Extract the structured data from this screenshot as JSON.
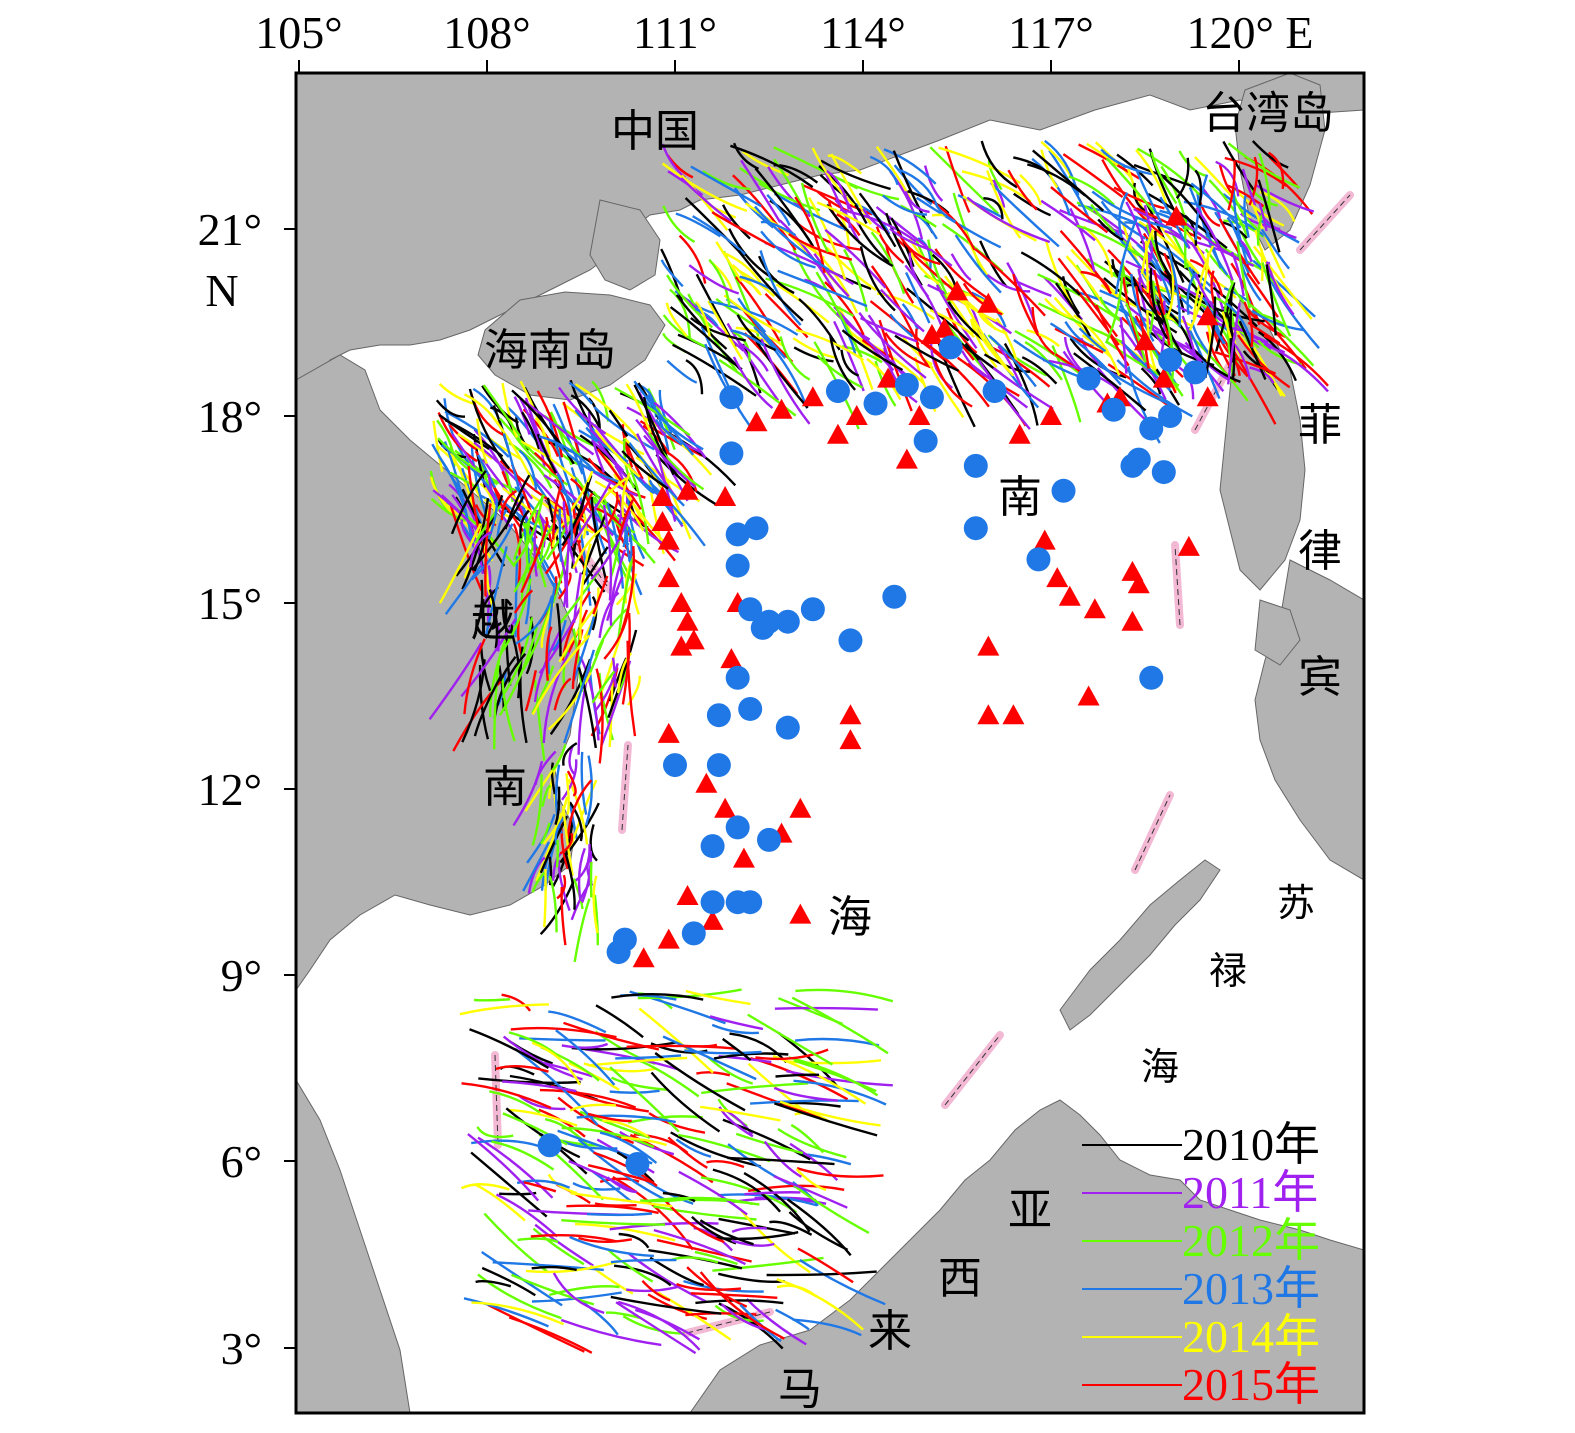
{
  "map": {
    "lon_ticks": [
      "105°",
      "108°",
      "111°",
      "114°",
      "117°",
      "120° E"
    ],
    "lat_ticks": [
      "21°",
      "18°",
      "15°",
      "12°",
      "9°",
      "6°",
      "3°"
    ],
    "lat_unit": "N",
    "colors": {
      "land": "#b3b3b3",
      "sea": "#ffffff",
      "triangle": "#ff0000",
      "circle": "#1f78e6",
      "boundary": "#f2b8d4"
    },
    "places": {
      "china": "中国",
      "taiwan": "台湾岛",
      "hainan": "海南岛",
      "vietnam_1": "越",
      "vietnam_2": "南",
      "philippines_1": "菲",
      "philippines_2": "律",
      "philippines_3": "宾",
      "scs_1": "南",
      "scs_2": "海",
      "sulu_1": "苏",
      "sulu_2": "禄",
      "sulu_3": "海",
      "malaysia_1": "亚",
      "malaysia_2": "西",
      "malaysia_3": "来",
      "malaysia_4": "马"
    },
    "legend": [
      {
        "label": "2010年",
        "color": "#000000"
      },
      {
        "label": "2011年",
        "color": "#a020f0"
      },
      {
        "label": "2012年",
        "color": "#66ff00"
      },
      {
        "label": "2013年",
        "color": "#1f78e6"
      },
      {
        "label": "2014年",
        "color": "#ffff00"
      },
      {
        "label": "2015年",
        "color": "#ff0000"
      }
    ],
    "triangles": [
      [
        119.0,
        21.2
      ],
      [
        118.5,
        19.2
      ],
      [
        118.1,
        18.3
      ],
      [
        118.8,
        18.6
      ],
      [
        119.5,
        18.3
      ],
      [
        117.9,
        18.2
      ],
      [
        117.0,
        18.0
      ],
      [
        116.5,
        17.7
      ],
      [
        115.3,
        19.4
      ],
      [
        115.1,
        19.3
      ],
      [
        116.0,
        19.8
      ],
      [
        115.5,
        20.0
      ],
      [
        114.4,
        18.6
      ],
      [
        113.6,
        17.7
      ],
      [
        113.9,
        18.0
      ],
      [
        114.7,
        17.3
      ],
      [
        112.3,
        17.9
      ],
      [
        112.7,
        18.1
      ],
      [
        113.2,
        18.3
      ],
      [
        114.9,
        18.0
      ],
      [
        110.8,
        16.7
      ],
      [
        111.2,
        16.8
      ],
      [
        111.8,
        16.7
      ],
      [
        110.8,
        16.3
      ],
      [
        110.9,
        16.0
      ],
      [
        110.9,
        15.4
      ],
      [
        111.1,
        15.0
      ],
      [
        111.2,
        14.7
      ],
      [
        111.3,
        14.4
      ],
      [
        111.1,
        14.3
      ],
      [
        112.0,
        15.0
      ],
      [
        111.9,
        14.1
      ],
      [
        110.9,
        12.9
      ],
      [
        111.5,
        12.1
      ],
      [
        111.8,
        11.7
      ],
      [
        113.0,
        11.7
      ],
      [
        112.7,
        11.3
      ],
      [
        112.1,
        10.9
      ],
      [
        111.2,
        10.3
      ],
      [
        111.6,
        9.9
      ],
      [
        110.9,
        9.6
      ],
      [
        110.5,
        9.3
      ],
      [
        113.0,
        10.0
      ],
      [
        113.8,
        13.2
      ],
      [
        113.8,
        12.8
      ],
      [
        116.0,
        13.2
      ],
      [
        116.4,
        13.2
      ],
      [
        116.0,
        14.3
      ],
      [
        116.9,
        16.0
      ],
      [
        117.1,
        15.4
      ],
      [
        117.3,
        15.1
      ],
      [
        117.7,
        14.9
      ],
      [
        118.3,
        14.7
      ],
      [
        118.3,
        15.5
      ],
      [
        118.4,
        15.3
      ],
      [
        117.6,
        13.5
      ],
      [
        119.2,
        15.9
      ],
      [
        119.5,
        19.6
      ]
    ],
    "circles": [
      [
        111.9,
        18.3
      ],
      [
        111.9,
        17.4
      ],
      [
        112.0,
        16.1
      ],
      [
        112.3,
        16.2
      ],
      [
        112.0,
        15.6
      ],
      [
        112.2,
        14.9
      ],
      [
        112.4,
        14.6
      ],
      [
        112.5,
        14.7
      ],
      [
        112.8,
        14.7
      ],
      [
        113.2,
        14.9
      ],
      [
        113.8,
        14.4
      ],
      [
        114.5,
        15.1
      ],
      [
        112.0,
        13.8
      ],
      [
        112.2,
        13.3
      ],
      [
        111.7,
        13.2
      ],
      [
        112.8,
        13.0
      ],
      [
        111.0,
        12.4
      ],
      [
        111.7,
        12.4
      ],
      [
        111.6,
        11.1
      ],
      [
        112.0,
        11.4
      ],
      [
        112.5,
        11.2
      ],
      [
        111.6,
        10.2
      ],
      [
        112.0,
        10.2
      ],
      [
        112.2,
        10.2
      ],
      [
        111.3,
        9.7
      ],
      [
        110.2,
        9.6
      ],
      [
        110.1,
        9.4
      ],
      [
        113.6,
        18.4
      ],
      [
        114.2,
        18.2
      ],
      [
        114.7,
        18.5
      ],
      [
        115.1,
        18.3
      ],
      [
        115.0,
        17.6
      ],
      [
        115.4,
        19.1
      ],
      [
        116.1,
        18.4
      ],
      [
        115.8,
        17.2
      ],
      [
        115.8,
        16.2
      ],
      [
        116.8,
        15.7
      ],
      [
        117.2,
        16.8
      ],
      [
        117.6,
        18.6
      ],
      [
        118.0,
        18.1
      ],
      [
        118.6,
        17.8
      ],
      [
        118.9,
        18.0
      ],
      [
        118.9,
        18.9
      ],
      [
        119.3,
        18.7
      ],
      [
        118.3,
        17.2
      ],
      [
        118.4,
        17.3
      ],
      [
        118.8,
        17.1
      ],
      [
        118.6,
        13.8
      ],
      [
        110.4,
        6.0
      ],
      [
        109.0,
        6.3
      ]
    ]
  }
}
